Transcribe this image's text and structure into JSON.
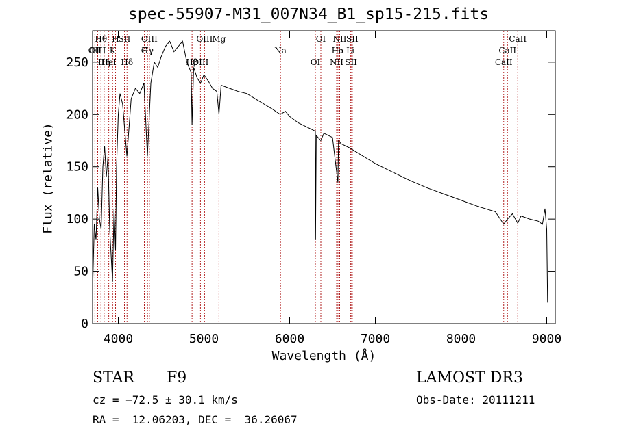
{
  "chart_data": {
    "type": "line",
    "title": "spec-55907-M31_007N34_B1_sp15-215.fits",
    "xlabel": "Wavelength (Å)",
    "ylabel": "Flux (relative)",
    "xlim": [
      3700,
      9100
    ],
    "ylim": [
      0,
      280
    ],
    "x_ticks": [
      4000,
      5000,
      6000,
      7000,
      8000,
      9000
    ],
    "y_ticks": [
      0,
      50,
      100,
      150,
      200,
      250
    ],
    "x": [
      3700,
      3720,
      3740,
      3760,
      3780,
      3800,
      3820,
      3840,
      3860,
      3880,
      3900,
      3920,
      3933,
      3950,
      3968,
      3980,
      4000,
      4020,
      4050,
      4101,
      4150,
      4200,
      4250,
      4300,
      4340,
      4380,
      4420,
      4460,
      4500,
      4550,
      4600,
      4650,
      4700,
      4750,
      4800,
      4850,
      4861,
      4880,
      4920,
      4960,
      5000,
      5050,
      5100,
      5150,
      5175,
      5200,
      5300,
      5400,
      5500,
      5600,
      5700,
      5800,
      5890,
      5950,
      6000,
      6100,
      6200,
      6300,
      6302,
      6310,
      6363,
      6400,
      6500,
      6563,
      6570,
      6600,
      6700,
      6800,
      6900,
      7000,
      7200,
      7400,
      7600,
      7800,
      8000,
      8200,
      8400,
      8498,
      8542,
      8600,
      8662,
      8700,
      8800,
      8900,
      8950,
      8980,
      9000,
      9010
    ],
    "values": [
      30,
      95,
      80,
      130,
      100,
      90,
      150,
      170,
      140,
      160,
      90,
      60,
      40,
      110,
      70,
      150,
      200,
      220,
      210,
      160,
      215,
      225,
      220,
      230,
      160,
      230,
      250,
      245,
      255,
      265,
      270,
      260,
      265,
      270,
      250,
      240,
      190,
      245,
      235,
      230,
      238,
      232,
      225,
      222,
      200,
      228,
      225,
      222,
      220,
      215,
      210,
      205,
      200,
      203,
      198,
      192,
      188,
      184,
      80,
      180,
      175,
      182,
      178,
      135,
      175,
      172,
      168,
      163,
      158,
      153,
      145,
      137,
      130,
      124,
      118,
      112,
      107,
      95,
      100,
      105,
      96,
      103,
      100,
      98,
      95,
      110,
      90,
      20
    ],
    "lines": [
      {
        "label": "Hθ",
        "x": 3798
      },
      {
        "label": "K",
        "x": 3934
      },
      {
        "label": "Hδ",
        "x": 4102
      },
      {
        "label": "OIII",
        "x": 4363
      },
      {
        "label": "Hγ",
        "x": 4341
      },
      {
        "label": "OIII",
        "x": 4959
      },
      {
        "label": "OIII",
        "x": 5007
      },
      {
        "label": "Na",
        "x": 5893
      },
      {
        "label": "OI",
        "x": 6300
      },
      {
        "label": "OI",
        "x": 6364
      },
      {
        "label": "Hα",
        "x": 6563
      },
      {
        "label": "SII",
        "x": 6717
      },
      {
        "label": "NII",
        "x": 6584
      },
      {
        "label": "Li",
        "x": 6708
      },
      {
        "label": "NII",
        "x": 6548
      },
      {
        "label": "SII",
        "x": 6731
      },
      {
        "label": "CaII",
        "x": 8542
      },
      {
        "label": "CaII",
        "x": 8498
      },
      {
        "label": "CaII",
        "x": 8662
      },
      {
        "label": "OII",
        "x": 3727
      },
      {
        "label": "HeI",
        "x": 3889
      },
      {
        "label": "SII",
        "x": 4072
      },
      {
        "label": "G",
        "x": 4304
      },
      {
        "label": "Hβ",
        "x": 4861
      },
      {
        "label": "Mg",
        "x": 5175
      },
      {
        "label": "OIII",
        "x": 3760
      },
      {
        "label": "Hη",
        "x": 3835
      },
      {
        "label": "H",
        "x": 3968
      }
    ]
  },
  "info": {
    "class_label": "STAR",
    "subclass": "F9",
    "survey": "LAMOST DR3",
    "redshift": "cz = −72.5 ± 30.1 km/s",
    "obs_date": "Obs-Date: 20111211",
    "coords": "RA =  12.06203, DEC =  36.26067"
  }
}
